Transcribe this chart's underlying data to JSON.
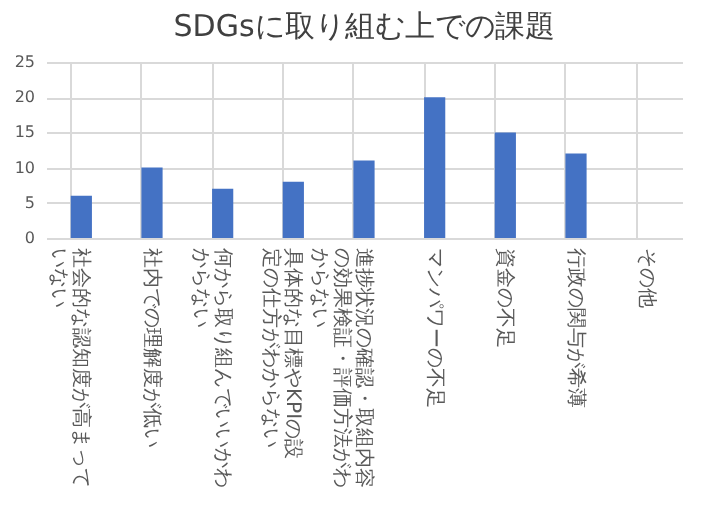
{
  "chart_data": {
    "type": "bar",
    "title": "SDGsに取り組む上での課題",
    "categories": [
      "社会的な認知度が高まっていない",
      "社内での理解度が低い",
      "何から取り組んでいいかわからない",
      "具体的な目標やKPIの設定の仕方がわからない",
      "進捗状況の確認・取組内容の効果検証・評価方法がわからない",
      "マンパワーの不足",
      "資金の不足",
      "行政の関与が希薄",
      "その他"
    ],
    "values": [
      6,
      10,
      7,
      8,
      11,
      20,
      15,
      12,
      0
    ],
    "color": "#4472c4",
    "ylim": [
      0,
      25
    ],
    "yticks": [
      0,
      5,
      10,
      15,
      20,
      25
    ],
    "grid": true
  }
}
